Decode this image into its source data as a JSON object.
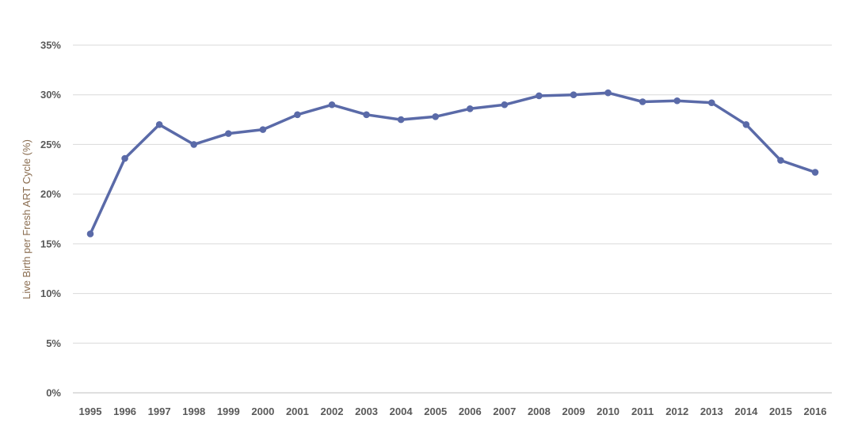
{
  "chart_data": {
    "type": "line",
    "title": "",
    "xlabel": "",
    "ylabel": "Live Birth per Fresh ART Cycle (%)",
    "categories": [
      "1995",
      "1996",
      "1997",
      "1998",
      "1999",
      "2000",
      "2001",
      "2002",
      "2003",
      "2004",
      "2005",
      "2006",
      "2007",
      "2008",
      "2009",
      "2010",
      "2011",
      "2012",
      "2013",
      "2014",
      "2015",
      "2016"
    ],
    "series": [
      {
        "values": [
          16.0,
          23.6,
          27.0,
          25.0,
          26.1,
          26.5,
          28.0,
          29.0,
          28.0,
          27.5,
          27.8,
          28.6,
          29.0,
          29.9,
          30.0,
          30.2,
          29.3,
          29.4,
          29.2,
          27.0,
          23.4,
          22.2
        ]
      }
    ],
    "ylim": [
      0,
      35
    ],
    "yticks": [
      0,
      5,
      10,
      15,
      20,
      25,
      30,
      35
    ],
    "ytick_labels": [
      "0%",
      "5%",
      "10%",
      "15%",
      "20%",
      "25%",
      "30%",
      "35%"
    ],
    "grid": true,
    "legend": "none",
    "colors": {
      "line": "#5a6aa8",
      "grid": "#d9d9d9",
      "tick_text": "#595959",
      "axis_title": "#8a6d50"
    }
  }
}
